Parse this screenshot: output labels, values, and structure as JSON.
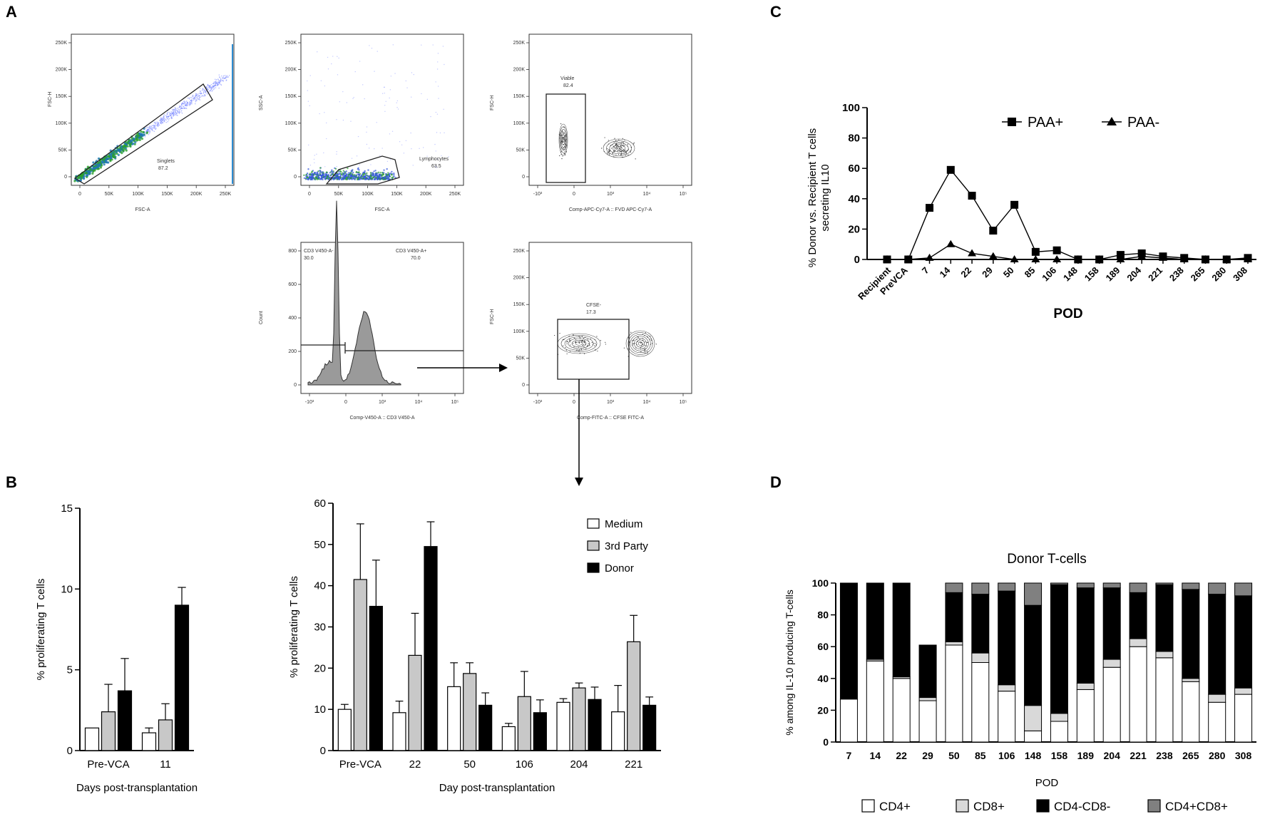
{
  "panel_labels": {
    "a": "A",
    "b": "B",
    "c": "C",
    "d": "D"
  },
  "flow": {
    "plot1": {
      "ylabel": "FSC-H",
      "xlabel": "FSC-A",
      "gate_name": "Singlets",
      "gate_value": "87.2",
      "x_ticks": [
        "0",
        "50K",
        "100K",
        "150K",
        "200K",
        "250K"
      ],
      "y_ticks": [
        "0",
        "50K",
        "100K",
        "150K",
        "200K",
        "250K"
      ]
    },
    "plot2": {
      "ylabel": "SSC-A",
      "xlabel": "FSC-A",
      "gate_name": "Lymphocytes",
      "gate_value": "63.5",
      "x_ticks": [
        "0",
        "50K",
        "100K",
        "150K",
        "200K",
        "250K"
      ],
      "y_ticks": [
        "0",
        "50K",
        "100K",
        "150K",
        "200K",
        "250K"
      ]
    },
    "plot3": {
      "ylabel": "FSC-H",
      "xlabel": "Comp-APC-Cy7-A :: FVD APC-Cy7-A",
      "gate_name": "Viable",
      "gate_value": "82.4",
      "x_ticks": [
        "-10³",
        "0",
        "10³",
        "10⁴",
        "10⁵"
      ],
      "y_ticks": [
        "0",
        "50K",
        "100K",
        "150K",
        "200K",
        "250K"
      ]
    },
    "plot4": {
      "ylabel": "Count",
      "xlabel": "Comp-V450-A :: CD3 V450-A",
      "gate_neg_name": "CD3 V450-A-",
      "gate_neg_value": "30.0",
      "gate_pos_name": "CD3 V450-A+",
      "gate_pos_value": "70.0",
      "x_ticks": [
        "-10³",
        "0",
        "10³",
        "10⁴",
        "10⁵"
      ],
      "y_ticks": [
        "0",
        "200",
        "400",
        "600",
        "800"
      ]
    },
    "plot5": {
      "ylabel": "FSC-H",
      "xlabel": "Comp-FITC-A :: CFSE FITC-A",
      "gate_name": "CFSE-",
      "gate_value": "17.3",
      "x_ticks": [
        "-10³",
        "0",
        "10³",
        "10⁴",
        "10⁵"
      ],
      "y_ticks": [
        "0",
        "50K",
        "100K",
        "150K",
        "200K",
        "250K"
      ]
    }
  },
  "chart_data": [
    {
      "id": "B-left",
      "type": "bar",
      "title": "",
      "ylabel": "% proliferating T cells",
      "xlabel": "Days post-transplantation",
      "ylim": [
        0,
        15
      ],
      "yticks": [
        0,
        5,
        10,
        15
      ],
      "categories": [
        "Pre-VCA",
        "11"
      ],
      "series": [
        {
          "name": "Medium",
          "color": "#ffffff",
          "values": [
            1.4,
            1.1
          ],
          "errors": [
            0.0,
            0.3
          ]
        },
        {
          "name": "3rd Party",
          "color": "#c8c8c8",
          "values": [
            2.4,
            1.9
          ],
          "errors": [
            1.7,
            1.0
          ]
        },
        {
          "name": "Donor",
          "color": "#000000",
          "values": [
            3.7,
            9.0
          ],
          "errors": [
            2.0,
            1.1
          ]
        }
      ]
    },
    {
      "id": "B-right",
      "type": "bar",
      "title": "",
      "ylabel": "% proliferating T cells",
      "xlabel": "Day post-transplantation",
      "ylim": [
        0,
        60
      ],
      "yticks": [
        0,
        10,
        20,
        30,
        40,
        50,
        60
      ],
      "categories": [
        "Pre-VCA",
        "22",
        "50",
        "106",
        "204",
        "221"
      ],
      "legend": [
        "Medium",
        "3rd Party",
        "Donor"
      ],
      "series": [
        {
          "name": "Medium",
          "color": "#ffffff",
          "values": [
            10,
            9.2,
            15.5,
            5.8,
            11.7,
            9.4
          ],
          "errors": [
            1.2,
            2.8,
            5.8,
            0.8,
            0.9,
            6.4
          ]
        },
        {
          "name": "3rd Party",
          "color": "#c8c8c8",
          "values": [
            41.5,
            23.1,
            18.7,
            13.1,
            15.2,
            26.4
          ],
          "errors": [
            13.5,
            10.2,
            2.6,
            6.1,
            1.2,
            6.4
          ]
        },
        {
          "name": "Donor",
          "color": "#000000",
          "values": [
            35,
            49.5,
            11,
            9.2,
            12.4,
            11
          ],
          "errors": [
            11.2,
            6.0,
            3.0,
            3.1,
            3.0,
            2.0
          ]
        }
      ]
    },
    {
      "id": "C",
      "type": "line",
      "title": "",
      "ylabel": "% Donor vs. Recipient T cells secreting IL10",
      "xlabel": "POD",
      "ylim": [
        0,
        100
      ],
      "yticks": [
        0,
        20,
        40,
        60,
        80,
        100
      ],
      "categories": [
        "Recipient",
        "PreVCA",
        "7",
        "14",
        "22",
        "29",
        "50",
        "85",
        "106",
        "148",
        "158",
        "189",
        "204",
        "221",
        "238",
        "265",
        "280",
        "308"
      ],
      "series": [
        {
          "name": "PAA+",
          "marker": "square",
          "values": [
            0,
            0,
            34,
            59,
            42,
            19,
            36,
            5,
            6,
            0,
            0,
            3,
            4,
            2,
            1,
            0,
            0,
            1
          ]
        },
        {
          "name": "PAA-",
          "marker": "triangle",
          "values": [
            0,
            0,
            1,
            10,
            4,
            2,
            0,
            0,
            0,
            0,
            0,
            0,
            2,
            1,
            0,
            0,
            0,
            0
          ]
        }
      ]
    },
    {
      "id": "D",
      "type": "bar",
      "stacked": true,
      "title": "Donor T-cells",
      "ylabel": "% among IL-10 producing T-cells",
      "xlabel": "POD",
      "ylim": [
        0,
        100
      ],
      "yticks": [
        0,
        20,
        40,
        60,
        80,
        100
      ],
      "categories": [
        "7",
        "14",
        "22",
        "29",
        "50",
        "85",
        "106",
        "148",
        "158",
        "189",
        "204",
        "221",
        "238",
        "265",
        "280",
        "308"
      ],
      "series": [
        {
          "name": "CD4+",
          "color": "#ffffff",
          "values": [
            27,
            51,
            40,
            26,
            61,
            50,
            32,
            7,
            13,
            33,
            47,
            60,
            53,
            38,
            25,
            30
          ]
        },
        {
          "name": "CD8+",
          "color": "#d9d9d9",
          "values": [
            0,
            1,
            1,
            2,
            2,
            6,
            4,
            16,
            5,
            4,
            5,
            5,
            4,
            2,
            5,
            4
          ]
        },
        {
          "name": "CD4-CD8-",
          "color": "#000000",
          "values": [
            73,
            48,
            59,
            33,
            31,
            37,
            59,
            63,
            81,
            60,
            45,
            29,
            42,
            56,
            63,
            58
          ]
        },
        {
          "name": "CD4+CD8+",
          "color": "#808080",
          "values": [
            0,
            0,
            0,
            0,
            6,
            7,
            5,
            14,
            1,
            3,
            3,
            6,
            1,
            4,
            7,
            8
          ]
        }
      ]
    }
  ]
}
